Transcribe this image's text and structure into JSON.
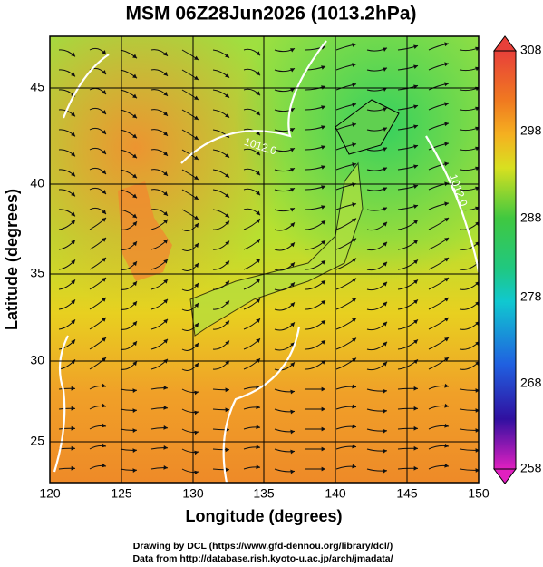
{
  "header": {
    "title": "MSM 06Z28Jun2026 (1013.2hPa)"
  },
  "axes": {
    "x_label": "Longitude (degrees)",
    "y_label": "Latitude  (degrees)",
    "x_ticks": [
      120,
      125,
      130,
      135,
      140,
      145,
      150
    ],
    "y_ticks": [
      45,
      40,
      35,
      30,
      25
    ]
  },
  "colorbar": {
    "ticks": [
      308,
      298,
      288,
      278,
      268,
      258
    ]
  },
  "contour_labels": [
    "1012.0",
    "1012.0"
  ],
  "footer": {
    "lines": [
      "Drawing by DCL (https://www.gfd-dennou.org/library/dcl/)",
      "Data from http://database.rish.kyoto-u.ac.jp/arch/jmadata/"
    ]
  }
}
